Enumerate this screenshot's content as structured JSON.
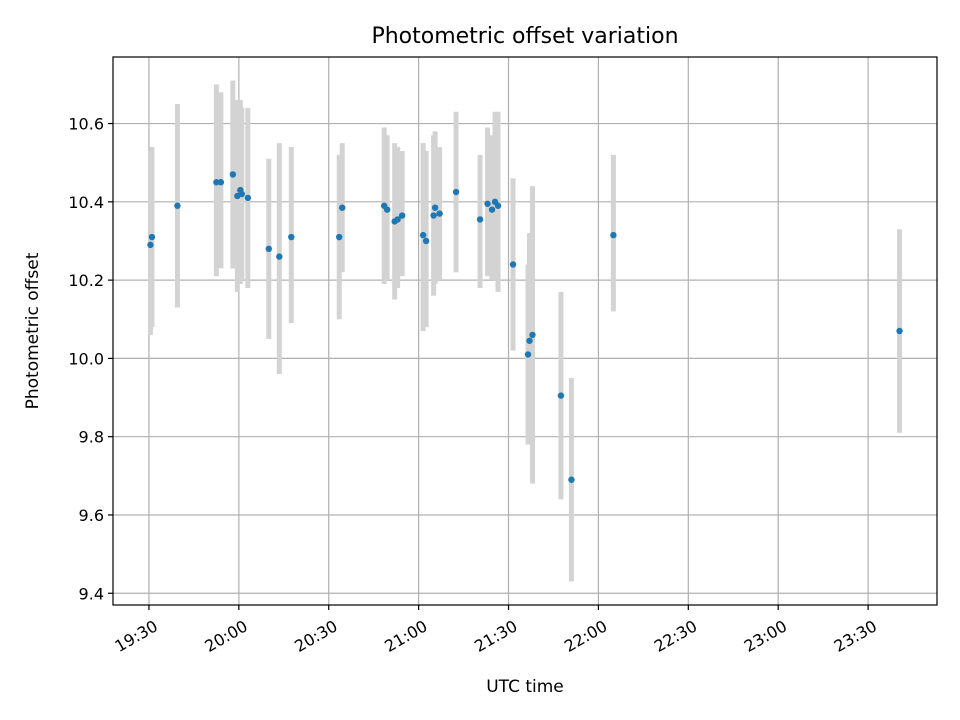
{
  "chart_data": {
    "type": "scatter",
    "title": "Photometric offset variation",
    "xlabel": "UTC time",
    "ylabel": "Photometric offset",
    "xlim": [
      "19:18",
      "23:53"
    ],
    "ylim": [
      9.37,
      10.77
    ],
    "grid": true,
    "x_ticks": [
      "19:30",
      "20:00",
      "20:30",
      "21:00",
      "21:30",
      "22:00",
      "22:30",
      "23:00",
      "23:30"
    ],
    "y_ticks": [
      9.4,
      9.6,
      9.8,
      10.0,
      10.2,
      10.4,
      10.6
    ],
    "y_tick_labels": [
      "9.4",
      "9.6",
      "9.8",
      "10.0",
      "10.2",
      "10.4",
      "10.6"
    ],
    "colors": {
      "point": "#1f77b4",
      "errorbar": "#d3d3d3",
      "grid": "#b0b0b0"
    },
    "points": [
      {
        "t": "19:30:30",
        "y": 10.29,
        "lo": 10.06,
        "hi": 10.53
      },
      {
        "t": "19:31:00",
        "y": 10.31,
        "lo": 10.08,
        "hi": 10.54
      },
      {
        "t": "19:39:30",
        "y": 10.39,
        "lo": 10.13,
        "hi": 10.65
      },
      {
        "t": "19:52:30",
        "y": 10.45,
        "lo": 10.21,
        "hi": 10.7
      },
      {
        "t": "19:54:00",
        "y": 10.45,
        "lo": 10.23,
        "hi": 10.68
      },
      {
        "t": "19:58:00",
        "y": 10.47,
        "lo": 10.23,
        "hi": 10.71
      },
      {
        "t": "19:59:30",
        "y": 10.415,
        "lo": 10.17,
        "hi": 10.66
      },
      {
        "t": "20:00:30",
        "y": 10.43,
        "lo": 10.19,
        "hi": 10.66
      },
      {
        "t": "20:01:00",
        "y": 10.42,
        "lo": 10.2,
        "hi": 10.64
      },
      {
        "t": "20:03:00",
        "y": 10.41,
        "lo": 10.18,
        "hi": 10.64
      },
      {
        "t": "20:10:00",
        "y": 10.28,
        "lo": 10.05,
        "hi": 10.51
      },
      {
        "t": "20:13:30",
        "y": 10.26,
        "lo": 9.96,
        "hi": 10.55
      },
      {
        "t": "20:17:30",
        "y": 10.31,
        "lo": 10.09,
        "hi": 10.54
      },
      {
        "t": "20:33:30",
        "y": 10.31,
        "lo": 10.1,
        "hi": 10.52
      },
      {
        "t": "20:34:30",
        "y": 10.385,
        "lo": 10.22,
        "hi": 10.55
      },
      {
        "t": "20:48:30",
        "y": 10.39,
        "lo": 10.19,
        "hi": 10.59
      },
      {
        "t": "20:49:30",
        "y": 10.38,
        "lo": 10.2,
        "hi": 10.57
      },
      {
        "t": "20:52:00",
        "y": 10.35,
        "lo": 10.15,
        "hi": 10.55
      },
      {
        "t": "20:53:00",
        "y": 10.355,
        "lo": 10.18,
        "hi": 10.54
      },
      {
        "t": "20:54:30",
        "y": 10.365,
        "lo": 10.21,
        "hi": 10.53
      },
      {
        "t": "21:01:30",
        "y": 10.315,
        "lo": 10.07,
        "hi": 10.55
      },
      {
        "t": "21:02:30",
        "y": 10.3,
        "lo": 10.08,
        "hi": 10.53
      },
      {
        "t": "21:05:00",
        "y": 10.365,
        "lo": 10.16,
        "hi": 10.57
      },
      {
        "t": "21:05:30",
        "y": 10.385,
        "lo": 10.19,
        "hi": 10.58
      },
      {
        "t": "21:07:00",
        "y": 10.37,
        "lo": 10.2,
        "hi": 10.54
      },
      {
        "t": "21:12:30",
        "y": 10.425,
        "lo": 10.22,
        "hi": 10.63
      },
      {
        "t": "21:20:30",
        "y": 10.355,
        "lo": 10.18,
        "hi": 10.52
      },
      {
        "t": "21:23:00",
        "y": 10.395,
        "lo": 10.21,
        "hi": 10.59
      },
      {
        "t": "21:24:30",
        "y": 10.38,
        "lo": 10.2,
        "hi": 10.57
      },
      {
        "t": "21:25:30",
        "y": 10.4,
        "lo": 10.2,
        "hi": 10.63
      },
      {
        "t": "21:26:30",
        "y": 10.39,
        "lo": 10.17,
        "hi": 10.63
      },
      {
        "t": "21:31:30",
        "y": 10.24,
        "lo": 10.02,
        "hi": 10.46
      },
      {
        "t": "21:36:30",
        "y": 10.01,
        "lo": 9.78,
        "hi": 10.24
      },
      {
        "t": "21:37:00",
        "y": 10.045,
        "lo": 9.78,
        "hi": 10.32
      },
      {
        "t": "21:38:00",
        "y": 10.06,
        "lo": 9.68,
        "hi": 10.44
      },
      {
        "t": "21:47:30",
        "y": 9.905,
        "lo": 9.64,
        "hi": 10.17
      },
      {
        "t": "21:51:00",
        "y": 9.69,
        "lo": 9.43,
        "hi": 9.95
      },
      {
        "t": "22:05:00",
        "y": 10.315,
        "lo": 10.12,
        "hi": 10.52
      },
      {
        "t": "23:40:30",
        "y": 10.07,
        "lo": 9.81,
        "hi": 10.33
      }
    ]
  }
}
